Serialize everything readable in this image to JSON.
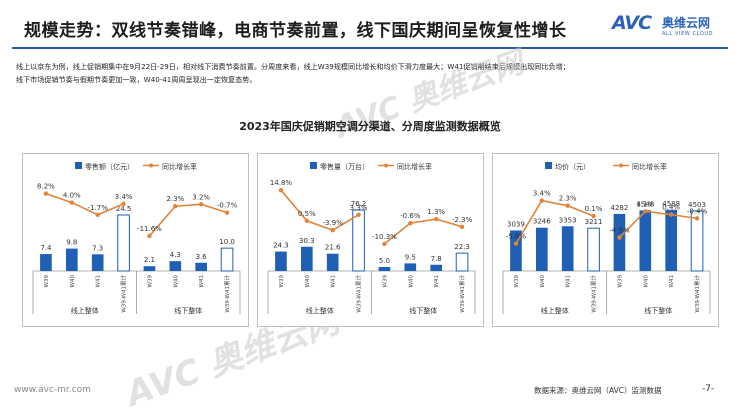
{
  "page_title": "规模走势：双线节奏错峰，电商节奏前置，线下国庆期间呈恢复性增长",
  "logo": {
    "avc": "AVC",
    "cn": "奥维云网",
    "en": "ALL VIEW CLOUD"
  },
  "intro_lines": [
    "线上以京东为例，线上促销期集中在9月22日-29日，相对线下消费节奏前置。分周度来看，线上W39规模同比增长和均价下滑力度最大；W41促销期结束后规模出现同比负增；",
    "线下市场促销节奏与假期节奏更加一致，W40-41周周呈现出一定恢复态势。"
  ],
  "chart_title": "2023年国庆促销期空调分渠道、分周度监测数据概览",
  "colors": {
    "bar": "#1f5fb4",
    "line": "#e0843a",
    "rule": "#2f5aa8"
  },
  "chart_data": [
    {
      "type": "bar",
      "bar_legend": "零售额（亿元）",
      "line_legend": "同比增长率",
      "categories": [
        "W39",
        "W40",
        "W41",
        "W39-W41累计",
        "W39",
        "W40",
        "W41",
        "W39-W41累计"
      ],
      "category_labels": [
        "W39",
        "W40",
        "W41",
        "W39-W41累计",
        "W39",
        "W40",
        "W41",
        "W39-W41累计"
      ],
      "groups": [
        "线上整体",
        "线下整体"
      ],
      "values": [
        7.4,
        9.8,
        7.3,
        24.5,
        2.1,
        4.3,
        3.6,
        10.0
      ],
      "value_labels": [
        "7.4",
        "9.8",
        "7.3",
        "24.5",
        "2.1",
        "4.3",
        "3.6",
        "10.0"
      ],
      "growth": [
        8.2,
        4.0,
        -1.7,
        3.4,
        -11.6,
        2.3,
        3.2,
        -0.7
      ],
      "growth_labels": [
        "8.2%",
        "4.0%",
        "-1.7%",
        "3.4%",
        "-11.6%",
        "2.3%",
        "3.2%",
        "-0.7%"
      ],
      "ylim": [
        0,
        35
      ],
      "growth_ylim": [
        -20,
        15
      ]
    },
    {
      "type": "bar",
      "bar_legend": "零售量（万台）",
      "line_legend": "同比增长率",
      "categories": [
        "W39",
        "W40",
        "W41",
        "W39-W41累计",
        "W39",
        "W40",
        "W41",
        "W39-W41累计"
      ],
      "category_labels": [
        "W39",
        "W40",
        "W41",
        "W39-W41累计",
        "W39",
        "W40",
        "W41",
        "W39-W41累计"
      ],
      "groups": [
        "线上整体",
        "线下整体"
      ],
      "values": [
        24.3,
        30.3,
        21.6,
        76.2,
        5.0,
        9.5,
        7.8,
        22.3
      ],
      "value_labels": [
        "24.3",
        "30.3",
        "21.6",
        "76.2",
        "5.0",
        "9.5",
        "7.8",
        "22.3"
      ],
      "growth": [
        14.8,
        0.5,
        -3.9,
        3.3,
        -10.3,
        -0.6,
        1.3,
        -2.3
      ],
      "growth_labels": [
        "14.8%",
        "0.5%",
        "-3.9%",
        "3.3%",
        "-10.3%",
        "-0.6%",
        "1.3%",
        "-2.3%"
      ],
      "ylim": [
        0,
        100
      ],
      "growth_ylim": [
        -15,
        20
      ]
    },
    {
      "type": "bar",
      "bar_legend": "均价（元）",
      "line_legend": "同比增长率",
      "categories": [
        "W39",
        "W40",
        "W41",
        "W39-W41累计",
        "W39",
        "W40",
        "W41",
        "W39-W41累计"
      ],
      "category_labels": [
        "W39",
        "W40",
        "W41",
        "W39-W41累计",
        "W39",
        "W40",
        "W41",
        "W39-W41累计"
      ],
      "groups": [
        "线上整体",
        "线下整体"
      ],
      "values": [
        3039,
        3246,
        3353,
        3211,
        4282,
        4548,
        4588,
        4503
      ],
      "value_labels": [
        "3039",
        "3246",
        "3353",
        "3211",
        "4282",
        "4548",
        "4588",
        "4503"
      ],
      "growth": [
        -5.8,
        3.4,
        2.3,
        0.1,
        -4.5,
        1.1,
        0.4,
        -0.4
      ],
      "growth_labels": [
        "-5.8%",
        "3.4%",
        "2.3%",
        "0.1%",
        "-4.5%",
        "1.1%",
        "0.4%",
        "-0.4%"
      ],
      "ylim": [
        0,
        6000
      ],
      "growth_ylim": [
        -8,
        8
      ]
    }
  ],
  "footer": {
    "url": "www.avc-mr.com",
    "source": "数据来源：奥维云网（AVC）监测数据",
    "page": "-7-"
  },
  "watermark": {
    "avc": "AVC",
    "cn": "奥维云网",
    "en": "ALL VIEW CLOUD"
  }
}
